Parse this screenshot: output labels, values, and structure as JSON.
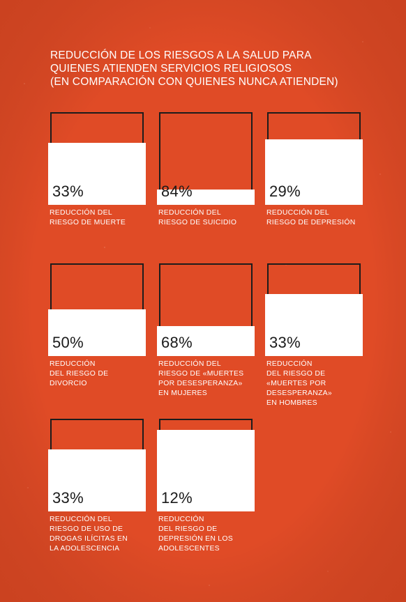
{
  "colors": {
    "background": "#e04b26",
    "fill": "#ffffff",
    "outline": "#1c1c1c",
    "value_text": "#1a1a1a",
    "label_text": "#ffffff"
  },
  "title_lines": [
    "REDUCCIÓN DE LOS RIESGOS A LA SALUD PARA",
    "QUIENES ATIENDEN SERVICIOS RELIGIOSOS",
    "(EN COMPARACIÓN CON QUIENES NUNCA ATIENDEN)"
  ],
  "chart_data": {
    "type": "bar",
    "title": "REDUCCIÓN DE LOS RIESGOS A LA SALUD PARA QUIENES ATIENDEN SERVICIOS RELIGIOSOS (EN COMPARACIÓN CON QUIENES NUNCA ATIENDEN)",
    "encoding": "filled-square",
    "ylim": [
      0,
      100
    ],
    "items": [
      {
        "value": 33,
        "value_label": "33%",
        "label_lines": [
          "REDUCCIÓN DEL",
          "RIESGO DE MUERTE"
        ]
      },
      {
        "value": 84,
        "value_label": "84%",
        "label_lines": [
          "REDUCCIÓN DEL",
          "RIESGO DE SUICIDIO"
        ]
      },
      {
        "value": 29,
        "value_label": "29%",
        "label_lines": [
          "REDUCCIÓN DEL",
          "RIESGO DE DEPRESIÓN"
        ]
      },
      {
        "value": 50,
        "value_label": "50%",
        "label_lines": [
          "REDUCCIÓN",
          "DEL RIESGO DE",
          "DIVORCIO"
        ]
      },
      {
        "value": 68,
        "value_label": "68%",
        "label_lines": [
          "REDUCCIÓN DEL",
          "RIESGO DE «MUERTES",
          "POR DESESPERANZA»",
          "EN MUJERES"
        ]
      },
      {
        "value": 33,
        "value_label": "33%",
        "label_lines": [
          "REDUCCIÓN",
          "DEL RIESGO DE",
          "«MUERTES POR",
          "DESESPERANZA»",
          "EN HOMBRES"
        ]
      },
      {
        "value": 33,
        "value_label": "33%",
        "label_lines": [
          "REDUCCIÓN DEL",
          "RIESGO DE USO DE",
          "DROGAS ILÍCITAS EN",
          "LA ADOLESCENCIA"
        ]
      },
      {
        "value": 12,
        "value_label": "12%",
        "label_lines": [
          "REDUCCIÓN",
          "DEL RIESGO DE",
          "DEPRESIÓN EN LOS",
          "ADOLESCENTES"
        ]
      }
    ]
  }
}
